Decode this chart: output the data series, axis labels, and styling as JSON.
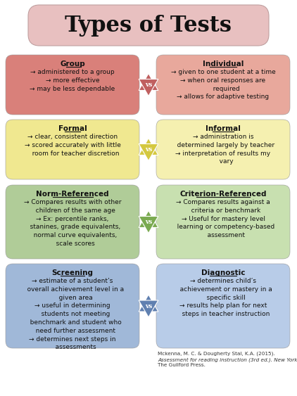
{
  "title": "Types of Tests",
  "title_bg": "#e8c0c0",
  "bg_color": "#ffffff",
  "rows": [
    {
      "left_title": "Group",
      "left_text": "→ administered to a group\n→ more effective\n→ may be less dependable",
      "left_bg": "#d9807a",
      "right_title": "Individual",
      "right_text": "→ given to one student at a time\n→ when oral responses are\n   required\n→ allows for adaptive testing",
      "right_bg": "#e8a89c",
      "star_color": "#c06060"
    },
    {
      "left_title": "Formal",
      "left_text": "→ clear, consistent direction\n→ scored accurately with little\n   room for teacher discretion",
      "left_bg": "#f0e890",
      "right_title": "Informal",
      "right_text": "→ administration is\n   determined largely by teacher\n→ interpretation of results my\n   vary",
      "right_bg": "#f5f0b0",
      "star_color": "#d4c840"
    },
    {
      "left_title": "Norm-Referenced",
      "left_text": "→ Compares results with other\n   children of the same age\n→ Ex: percentile ranks,\n   stanines, grade equivalents,\n   normal curve equivalents,\n   scale scores",
      "left_bg": "#b0cc98",
      "right_title": "Criterion-Referenced",
      "right_text": "→ Compares results against a\n   criteria or benchmark\n→ Useful for mastery level\n   learning or competency-based\n   assessment",
      "right_bg": "#c8e0b0",
      "star_color": "#7aaa50"
    },
    {
      "left_title": "Screening",
      "left_text": "→ estimate of a student’s\n   overall achievement level in a\n   given area\n→ useful in determining\n   students not meeting\n   benchmark and student who\n   need further assessment\n→ determines next steps in\n   assessments",
      "left_bg": "#a0b8d8",
      "right_title": "Diagnostic",
      "right_text": "→ determines child’s\n   achievement or mastery in a\n   specific skill\n→ results help plan for next\n   steps in teacher instruction",
      "right_bg": "#b8cce8",
      "star_color": "#6080b0"
    }
  ],
  "citation_line1": "Mckenna, M. C. & Dougherty Stal, K.A. (2015).",
  "citation_line2": "Assessment for reading instruction (3rd ed.). New York:",
  "citation_line3": "The Guilford Press."
}
